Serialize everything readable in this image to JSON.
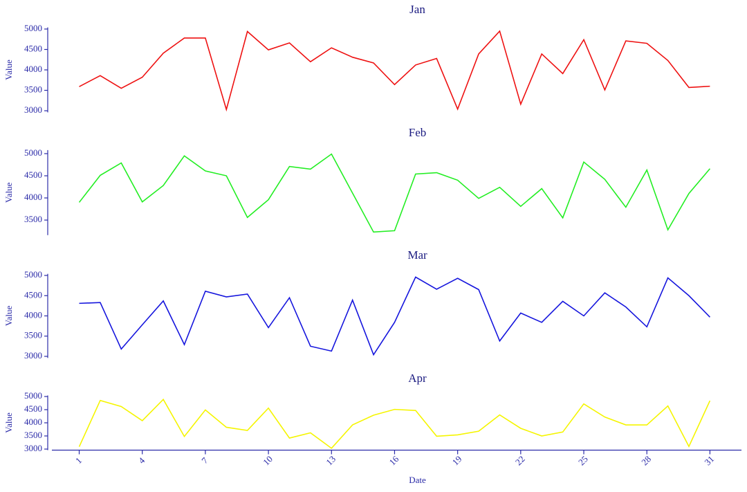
{
  "chart_data": [
    {
      "type": "line",
      "title": "Jan",
      "y_label": "Value",
      "x": [
        1,
        2,
        3,
        4,
        5,
        6,
        7,
        8,
        9,
        10,
        11,
        12,
        13,
        14,
        15,
        16,
        17,
        18,
        19,
        20,
        21,
        22,
        23,
        24,
        25,
        26,
        27,
        28,
        29,
        30,
        31
      ],
      "xlim": [
        -0.3,
        32.5
      ],
      "ylim": [
        2960,
        5040
      ],
      "yticks": [
        3000,
        3500,
        4000,
        4500,
        5000
      ],
      "series": [
        {
          "color": "#ee1111",
          "values": [
            3590,
            3860,
            3550,
            3820,
            4410,
            4780,
            4780,
            3030,
            4940,
            4490,
            4660,
            4200,
            4540,
            4310,
            4170,
            3640,
            4120,
            4280,
            3040,
            4390,
            4950,
            3160,
            4390,
            3910,
            4740,
            3510,
            4710,
            4650,
            4230,
            3570,
            3600
          ]
        }
      ]
    },
    {
      "type": "line",
      "title": "Feb",
      "y_label": "Value",
      "x": [
        1,
        2,
        3,
        4,
        5,
        6,
        7,
        8,
        9,
        10,
        11,
        12,
        13,
        14,
        15,
        16,
        17,
        18,
        19,
        20,
        21,
        22,
        23,
        24,
        25,
        26,
        27,
        28,
        29,
        30,
        31
      ],
      "xlim": [
        -0.3,
        32.5
      ],
      "ylim": [
        3160,
        5080
      ],
      "yticks": [
        3500,
        4000,
        4500,
        5000
      ],
      "series": [
        {
          "color": "#22ee22",
          "values": [
            3900,
            4510,
            4790,
            3910,
            4280,
            4950,
            4610,
            4500,
            3560,
            3960,
            4710,
            4650,
            4990,
            4110,
            3230,
            3260,
            4540,
            4570,
            4400,
            3990,
            4240,
            3810,
            4210,
            3550,
            4810,
            4420,
            3790,
            4630,
            3280,
            4100,
            4660
          ]
        }
      ]
    },
    {
      "type": "line",
      "title": "Mar",
      "y_label": "Value",
      "x": [
        1,
        2,
        3,
        4,
        5,
        6,
        7,
        8,
        9,
        10,
        11,
        12,
        13,
        14,
        15,
        16,
        17,
        18,
        19,
        20,
        21,
        22,
        23,
        24,
        25,
        26,
        27,
        28,
        29,
        30,
        31
      ],
      "xlim": [
        -0.3,
        32.5
      ],
      "ylim": [
        2960,
        5040
      ],
      "yticks": [
        3000,
        3500,
        4000,
        4500,
        5000
      ],
      "series": [
        {
          "color": "#1515dd",
          "values": [
            4310,
            4330,
            3180,
            3780,
            4370,
            3290,
            4610,
            4470,
            4540,
            3710,
            4450,
            3250,
            3130,
            4390,
            3040,
            3840,
            4960,
            4660,
            4930,
            4650,
            3380,
            4070,
            3840,
            4360,
            4000,
            4570,
            4220,
            3730,
            4940,
            4500,
            3970
          ]
        }
      ]
    },
    {
      "type": "line",
      "title": "Apr",
      "y_label": "Value",
      "x_label": "Date",
      "x": [
        1,
        2,
        3,
        4,
        5,
        6,
        7,
        8,
        9,
        10,
        11,
        12,
        13,
        14,
        15,
        16,
        17,
        18,
        19,
        20,
        21,
        22,
        23,
        24,
        25,
        26,
        27,
        28,
        29,
        30,
        31
      ],
      "xlim": [
        -0.3,
        32.5
      ],
      "xticks": [
        1,
        4,
        7,
        10,
        13,
        16,
        19,
        22,
        25,
        28,
        31
      ],
      "ylim": [
        2960,
        5040
      ],
      "yticks": [
        3000,
        3500,
        4000,
        4500,
        5000
      ],
      "series": [
        {
          "color": "#f5f500",
          "values": [
            3090,
            4850,
            4620,
            4080,
            4890,
            3480,
            4490,
            3830,
            3710,
            4560,
            3420,
            3620,
            3030,
            3920,
            4290,
            4510,
            4470,
            3490,
            3540,
            3680,
            4300,
            3790,
            3500,
            3650,
            4720,
            4220,
            3920,
            3920,
            4640,
            3100,
            4840
          ]
        }
      ]
    }
  ]
}
